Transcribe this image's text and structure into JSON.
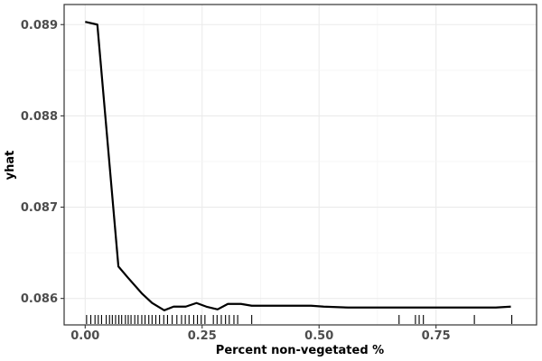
{
  "chart_data": {
    "type": "line",
    "title": "",
    "xlabel": "Percent non-vegetated %",
    "ylabel": "yhat",
    "xlim": [
      -0.045,
      0.965
    ],
    "ylim": [
      0.08571,
      0.08922
    ],
    "x_ticks": [
      0.0,
      0.25,
      0.5,
      0.75
    ],
    "x_tick_labels": [
      "0.00",
      "0.25",
      "0.50",
      "0.75"
    ],
    "y_ticks": [
      0.086,
      0.087,
      0.088,
      0.089
    ],
    "y_tick_labels": [
      "0.086",
      "0.087",
      "0.088",
      "0.089"
    ],
    "grid": true,
    "legend": "none",
    "line_color": "#000000",
    "series": [
      {
        "x": [
          0.0,
          0.026,
          0.071,
          0.091,
          0.122,
          0.143,
          0.169,
          0.189,
          0.215,
          0.238,
          0.259,
          0.283,
          0.305,
          0.333,
          0.356,
          0.428,
          0.483,
          0.51,
          0.562,
          0.673,
          0.727,
          0.878,
          0.91
        ],
        "y": [
          0.08903,
          0.089,
          0.08635,
          0.08623,
          0.08605,
          0.08595,
          0.08587,
          0.08591,
          0.08591,
          0.08595,
          0.08591,
          0.08588,
          0.08594,
          0.08594,
          0.08592,
          0.08592,
          0.08592,
          0.08591,
          0.0859,
          0.0859,
          0.0859,
          0.0859,
          0.08591
        ]
      }
    ],
    "rug_color": "#000000",
    "rug": [
      0.003,
      0.012,
      0.021,
      0.028,
      0.035,
      0.045,
      0.052,
      0.058,
      0.065,
      0.072,
      0.078,
      0.086,
      0.092,
      0.098,
      0.106,
      0.113,
      0.121,
      0.128,
      0.136,
      0.143,
      0.151,
      0.159,
      0.168,
      0.176,
      0.186,
      0.196,
      0.206,
      0.214,
      0.222,
      0.232,
      0.24,
      0.248,
      0.256,
      0.274,
      0.282,
      0.291,
      0.3,
      0.308,
      0.318,
      0.326,
      0.356,
      0.671,
      0.706,
      0.714,
      0.723,
      0.832,
      0.912
    ]
  }
}
